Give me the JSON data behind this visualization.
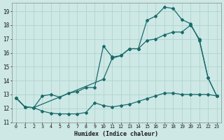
{
  "title": "",
  "xlabel": "Humidex (Indice chaleur)",
  "ylabel": "",
  "bg_color": "#cde8e5",
  "grid_color": "#b0d4d0",
  "line_color": "#1a6b6b",
  "xlim": [
    -0.5,
    23.5
  ],
  "ylim": [
    11.0,
    19.6
  ],
  "yticks": [
    11,
    12,
    13,
    14,
    15,
    16,
    17,
    18,
    19
  ],
  "xticks": [
    0,
    1,
    2,
    3,
    4,
    5,
    6,
    7,
    8,
    9,
    10,
    11,
    12,
    13,
    14,
    15,
    16,
    17,
    18,
    19,
    20,
    21,
    22,
    23
  ],
  "line1_x": [
    0,
    1,
    2,
    3,
    4,
    5,
    6,
    7,
    8,
    9,
    10,
    11,
    12,
    13,
    14,
    15,
    16,
    17,
    18,
    19,
    20,
    21,
    22,
    23
  ],
  "line1_y": [
    12.75,
    12.1,
    12.05,
    11.8,
    11.65,
    11.6,
    11.6,
    11.6,
    11.7,
    12.4,
    12.2,
    12.1,
    12.2,
    12.3,
    12.5,
    12.7,
    12.9,
    13.1,
    13.1,
    13.0,
    13.0,
    13.0,
    13.0,
    12.9
  ],
  "line2_x": [
    0,
    1,
    2,
    3,
    4,
    5,
    6,
    7,
    8,
    9,
    10,
    11,
    12,
    13,
    14,
    15,
    16,
    17,
    18,
    19,
    20,
    21,
    22,
    23
  ],
  "line2_y": [
    12.75,
    12.1,
    12.05,
    12.9,
    13.0,
    12.8,
    13.1,
    13.2,
    13.5,
    13.5,
    16.5,
    15.7,
    15.8,
    16.3,
    16.3,
    18.35,
    18.65,
    19.3,
    19.2,
    18.4,
    18.1,
    16.9,
    14.2,
    12.9
  ],
  "line3_x": [
    0,
    1,
    2,
    10,
    11,
    12,
    13,
    14,
    15,
    16,
    17,
    18,
    19,
    20,
    21,
    22,
    23
  ],
  "line3_y": [
    12.75,
    12.1,
    12.05,
    14.1,
    15.6,
    15.8,
    16.3,
    16.3,
    16.9,
    17.0,
    17.3,
    17.5,
    17.5,
    18.0,
    17.0,
    14.2,
    12.9
  ]
}
